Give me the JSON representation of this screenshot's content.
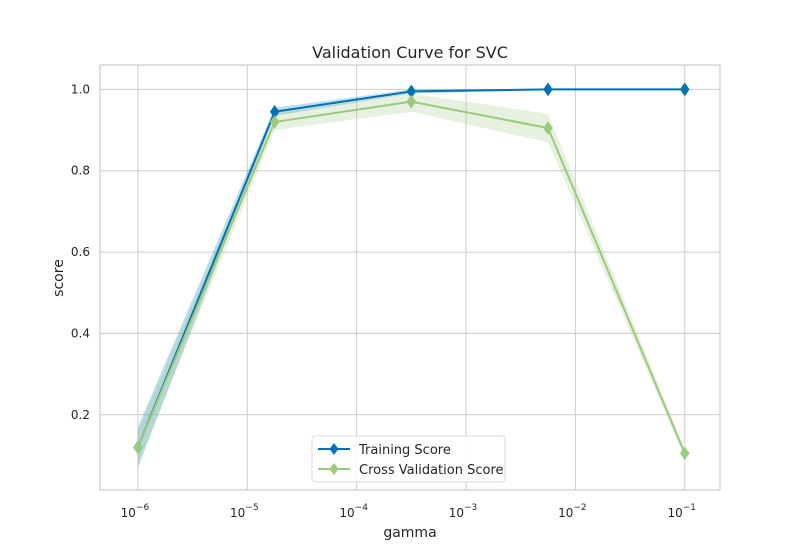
{
  "chart_data": {
    "type": "line",
    "title": "Validation Curve for SVC",
    "xlabel": "gamma",
    "ylabel": "score",
    "xscale": "log",
    "x": [
      1e-06,
      1.78e-05,
      0.000316,
      0.00562,
      0.1
    ],
    "xlim": [
      4.5e-07,
      0.21
    ],
    "ylim": [
      0.015,
      1.06
    ],
    "x_ticks": [
      {
        "value": 1e-06,
        "base": "10",
        "exp": "−6"
      },
      {
        "value": 1e-05,
        "base": "10",
        "exp": "−5"
      },
      {
        "value": 0.0001,
        "base": "10",
        "exp": "−4"
      },
      {
        "value": 0.001,
        "base": "10",
        "exp": "−3"
      },
      {
        "value": 0.01,
        "base": "10",
        "exp": "−2"
      },
      {
        "value": 0.1,
        "base": "10",
        "exp": "−1"
      }
    ],
    "y_ticks": [
      {
        "value": 0.2,
        "label": "0.2"
      },
      {
        "value": 0.4,
        "label": "0.4"
      },
      {
        "value": 0.6,
        "label": "0.6"
      },
      {
        "value": 0.8,
        "label": "0.8"
      },
      {
        "value": 1.0,
        "label": "1.0"
      }
    ],
    "grid": true,
    "legend_position": "bottom-center",
    "series": [
      {
        "name": "Training Score",
        "color": "#0072b2",
        "values": [
          0.12,
          0.945,
          0.995,
          1.0,
          1.0
        ],
        "lower": [
          0.07,
          0.935,
          0.99,
          0.999,
          0.999
        ],
        "upper": [
          0.17,
          0.955,
          1.0,
          1.001,
          1.001
        ]
      },
      {
        "name": "Cross Validation Score",
        "color": "#9cc97f",
        "values": [
          0.12,
          0.92,
          0.97,
          0.905,
          0.105
        ],
        "lower": [
          0.08,
          0.9,
          0.945,
          0.87,
          0.095
        ],
        "upper": [
          0.16,
          0.94,
          0.99,
          0.94,
          0.115
        ]
      }
    ]
  }
}
